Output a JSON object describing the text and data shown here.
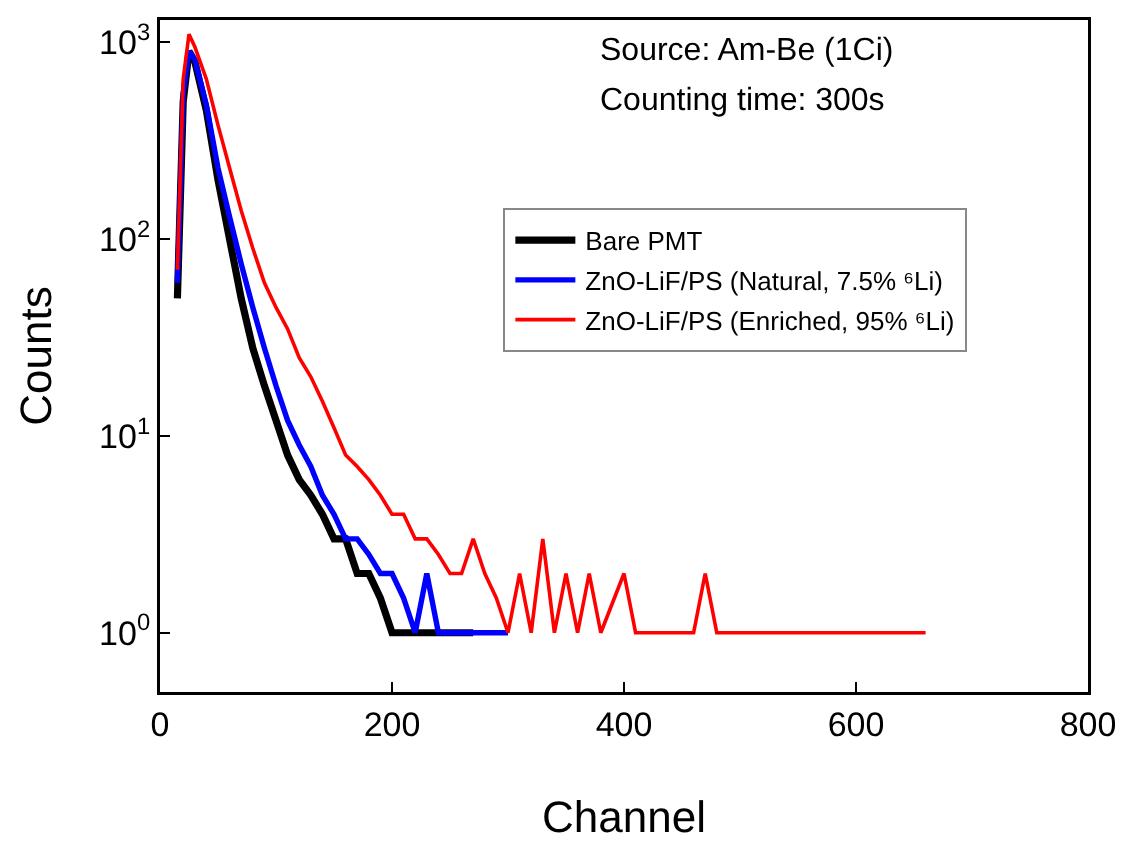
{
  "chart_data": {
    "type": "line",
    "xlabel": "Channel",
    "ylabel": "Counts",
    "log": "y",
    "xlim": [
      0,
      800
    ],
    "xticks": [
      0,
      200,
      400,
      600,
      800
    ],
    "ylim": [
      0.5,
      1300
    ],
    "yticks": [
      {
        "value": 1,
        "label": "10$^{0}$"
      },
      {
        "value": 10,
        "label": "10$^{1}$"
      },
      {
        "value": 100,
        "label": "10$^{2}$"
      },
      {
        "value": 1000,
        "label": "10$^{3}$"
      }
    ],
    "grid": false,
    "legend": "right",
    "marker": "none",
    "line_style": "solid",
    "annotations": [
      "Source: Am-Be (1Ci)",
      "Counting time: 300s"
    ],
    "series": [
      {
        "name": "Bare PMT",
        "color": "#000000",
        "x": [
          15,
          20,
          25,
          30,
          40,
          50,
          60,
          70,
          80,
          90,
          100,
          110,
          120,
          130,
          140,
          150,
          160,
          170,
          180,
          190,
          200,
          210,
          230,
          250,
          270
        ],
        "values": [
          50,
          500,
          900,
          800,
          450,
          200,
          100,
          50,
          28,
          18,
          12,
          8,
          6,
          5,
          4,
          3,
          3,
          2,
          2,
          1.5,
          1,
          1,
          1,
          1,
          1
        ]
      },
      {
        "name": "ZnO-LiF/PS (Natural, 7.5% ⁶Li)",
        "color": "#0000ff",
        "x": [
          15,
          20,
          25,
          30,
          40,
          50,
          60,
          70,
          80,
          90,
          100,
          110,
          120,
          130,
          140,
          150,
          160,
          170,
          180,
          190,
          200,
          210,
          220,
          230,
          240,
          250,
          270,
          280,
          300
        ],
        "values": [
          60,
          550,
          900,
          820,
          480,
          230,
          130,
          75,
          45,
          28,
          18,
          12,
          9,
          7,
          5,
          4,
          3,
          3,
          2.5,
          2,
          2,
          1.5,
          1,
          2,
          1,
          1,
          1,
          1,
          1
        ]
      },
      {
        "name": "ZnO-LiF/PS (Enriched, 95% ⁶Li)",
        "color": "#ff0000",
        "x": [
          15,
          20,
          25,
          30,
          40,
          50,
          60,
          70,
          80,
          90,
          100,
          110,
          120,
          130,
          140,
          150,
          160,
          170,
          180,
          190,
          200,
          210,
          220,
          230,
          240,
          250,
          260,
          270,
          280,
          290,
          300,
          310,
          320,
          330,
          340,
          350,
          360,
          370,
          380,
          400,
          410,
          440,
          460,
          470,
          480,
          500,
          530,
          550,
          570,
          590,
          600,
          620,
          660
        ],
        "values": [
          70,
          650,
          1100,
          950,
          650,
          380,
          230,
          140,
          90,
          60,
          45,
          35,
          25,
          20,
          15,
          11,
          8,
          7,
          6,
          5,
          4,
          4,
          3,
          3,
          2.5,
          2,
          2,
          3,
          2,
          1.5,
          1,
          2,
          1,
          3,
          1,
          2,
          1,
          2,
          1,
          2,
          1,
          1,
          1,
          2,
          1,
          1,
          1,
          1,
          1,
          1,
          1,
          1,
          1
        ]
      }
    ]
  }
}
